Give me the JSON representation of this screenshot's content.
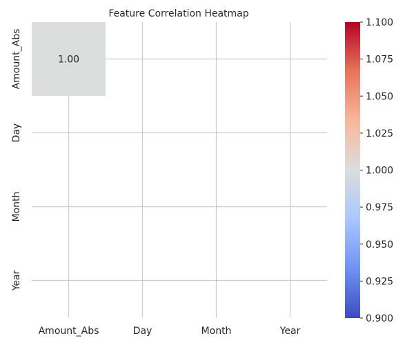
{
  "chart_data": {
    "type": "heatmap",
    "title": "Feature Correlation Heatmap",
    "x_categories": [
      "Amount_Abs",
      "Day",
      "Month",
      "Year"
    ],
    "y_categories": [
      "Amount_Abs",
      "Day",
      "Month",
      "Year"
    ],
    "cells": [
      {
        "row": 0,
        "col": 0,
        "value": 1.0,
        "label": "1.00",
        "color": "#dcdddd"
      }
    ],
    "colorbar": {
      "colormap": "coolwarm",
      "min": 0.9,
      "max": 1.1,
      "ticks": [
        {
          "value": 0.9,
          "label": "0.900"
        },
        {
          "value": 0.925,
          "label": "0.925"
        },
        {
          "value": 0.95,
          "label": "0.950"
        },
        {
          "value": 0.975,
          "label": "0.975"
        },
        {
          "value": 1.0,
          "label": "1.000"
        },
        {
          "value": 1.025,
          "label": "1.025"
        },
        {
          "value": 1.05,
          "label": "1.050"
        },
        {
          "value": 1.075,
          "label": "1.075"
        },
        {
          "value": 1.1,
          "label": "1.100"
        }
      ],
      "stops": [
        "#3b4cc0",
        "#6f92f3",
        "#aac7fd",
        "#dcdddd",
        "#f7b89c",
        "#e7745b",
        "#b40426"
      ]
    },
    "grid": true,
    "grid_color": "#cccccc"
  }
}
